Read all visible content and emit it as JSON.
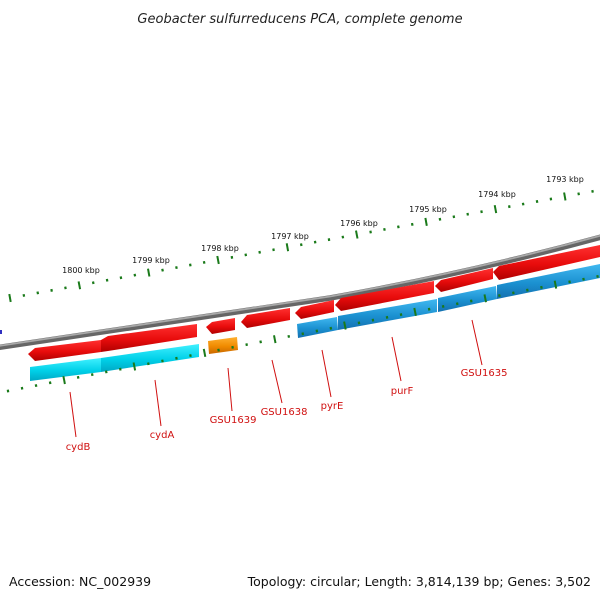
{
  "title": "Geobacter sulfurreducens PCA, complete genome",
  "accession": "Accession: NC_002939",
  "topology": "Topology: circular; Length: 3,814,139 bp; Genes: 3,502",
  "colors": {
    "backbone": "#808080",
    "ticks": "#1a7a1a",
    "gene_plus": "#e81010",
    "gene_minus": "#00c8e0",
    "gene_minus_dark": "#1a90d0",
    "gene_other": "#f08a00",
    "label": "#d01010"
  },
  "kbp_labels": [
    "1800 kbp",
    "1799 kbp",
    "1798 kbp",
    "1797 kbp",
    "1796 kbp",
    "1795 kbp",
    "1794 kbp",
    "1793 kbp"
  ],
  "gene_labels": [
    "cydB",
    "cydA",
    "GSU1639",
    "GSU1638",
    "pyrE",
    "purF",
    "GSU1635"
  ]
}
